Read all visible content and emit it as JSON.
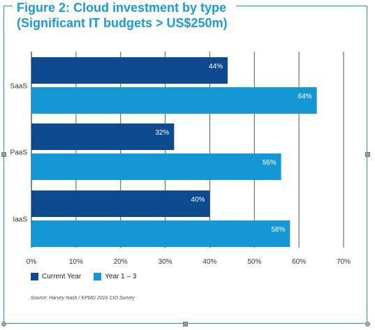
{
  "title": {
    "line1": "Figure 2: Cloud investment by type",
    "line2": "(Significant IT budgets > US$250m)"
  },
  "chart_data": {
    "type": "bar",
    "orientation": "horizontal",
    "title": "Figure 2: Cloud investment by type (Significant IT budgets > US$250m)",
    "categories": [
      "SaaS",
      "PaaS",
      "IaaS"
    ],
    "series": [
      {
        "name": "Current Year",
        "color": "#0d4a8f",
        "values": [
          44,
          32,
          40
        ]
      },
      {
        "name": "Year 1 – 3",
        "color": "#1597d5",
        "values": [
          64,
          56,
          58
        ]
      }
    ],
    "data_labels": [
      [
        "44%",
        "64%"
      ],
      [
        "32%",
        "56%"
      ],
      [
        "40%",
        "58%"
      ]
    ],
    "xlim": [
      0,
      70
    ],
    "x_ticks": [
      0,
      10,
      20,
      30,
      40,
      50,
      60,
      70
    ],
    "x_tick_labels": [
      "0%",
      "10%",
      "20%",
      "30%",
      "40%",
      "50%",
      "60%",
      "70%"
    ],
    "xlabel": "",
    "ylabel": "",
    "grid": true,
    "legend_position": "bottom-left"
  },
  "legend": {
    "items": [
      {
        "label": "Current Year",
        "color": "#0d4a8f"
      },
      {
        "label": "Year 1 – 3",
        "color": "#1597d5"
      }
    ]
  },
  "source": "Source: Harvey Nash / KPMG 2016 CIO Survey"
}
